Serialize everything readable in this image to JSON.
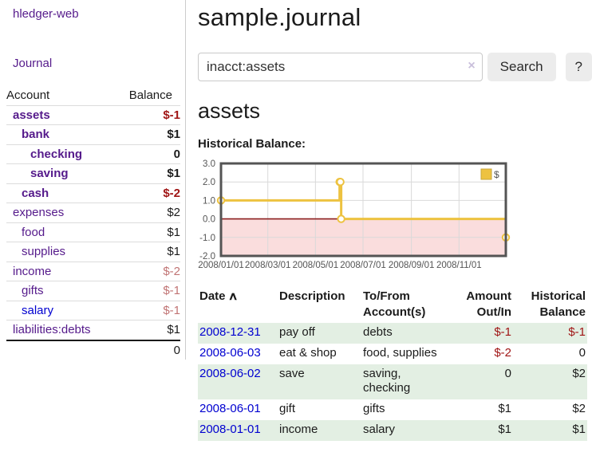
{
  "app": {
    "title": "hledger-web"
  },
  "sidebar": {
    "journal_link": "Journal",
    "accounts": {
      "header_account": "Account",
      "header_balance": "Balance",
      "rows": [
        {
          "account": "assets",
          "balance": "$-1",
          "depth": 1,
          "bold": true,
          "tone": "neg",
          "link": "purple"
        },
        {
          "account": "bank",
          "balance": "$1",
          "depth": 2,
          "bold": true,
          "tone": null,
          "link": "purple"
        },
        {
          "account": "checking",
          "balance": "0",
          "depth": 3,
          "bold": true,
          "tone": null,
          "link": "purple"
        },
        {
          "account": "saving",
          "balance": "$1",
          "depth": 3,
          "bold": true,
          "tone": null,
          "link": "purple"
        },
        {
          "account": "cash",
          "balance": "$-2",
          "depth": 2,
          "bold": true,
          "tone": "neg",
          "link": "purple"
        },
        {
          "account": "expenses",
          "balance": "$2",
          "depth": 1,
          "bold": false,
          "tone": null,
          "link": "purple"
        },
        {
          "account": "food",
          "balance": "$1",
          "depth": 2,
          "bold": false,
          "tone": null,
          "link": "purple"
        },
        {
          "account": "supplies",
          "balance": "$1",
          "depth": 2,
          "bold": false,
          "tone": null,
          "link": "purple"
        },
        {
          "account": "income",
          "balance": "$-2",
          "depth": 1,
          "bold": false,
          "tone": "neg-muted",
          "link": "purple"
        },
        {
          "account": "gifts",
          "balance": "$-1",
          "depth": 2,
          "bold": false,
          "tone": "neg-muted",
          "link": "purple"
        },
        {
          "account": "salary",
          "balance": "$-1",
          "depth": 2,
          "bold": false,
          "tone": "neg-muted",
          "link": "blue"
        },
        {
          "account": "liabilities:debts",
          "balance": "$1",
          "depth": 1,
          "bold": false,
          "tone": null,
          "link": "purple"
        }
      ],
      "total": "0"
    }
  },
  "main": {
    "title": "sample.journal",
    "search": {
      "value": "inacct:assets",
      "clear_label": "×",
      "button": "Search",
      "help": "?"
    },
    "account_heading": "assets",
    "chart_label": "Historical Balance:"
  },
  "register": {
    "headers": {
      "date": "Date",
      "sort_indicator": "∧",
      "description": "Description",
      "accounts": "To/From Account(s)",
      "amount": "Amount Out/In",
      "balance": "Historical Balance"
    },
    "rows": [
      {
        "date": "2008-12-31",
        "description": "pay off",
        "accounts": "debts",
        "amount": "$-1",
        "balance": "$-1",
        "amount_negative": true,
        "balance_negative": true,
        "shaded": true
      },
      {
        "date": "2008-06-03",
        "description": "eat & shop",
        "accounts": "food, supplies",
        "amount": "$-2",
        "balance": "0",
        "amount_negative": true,
        "balance_negative": false,
        "shaded": false
      },
      {
        "date": "2008-06-02",
        "description": "save",
        "accounts": "saving, checking",
        "amount": "0",
        "balance": "$2",
        "amount_negative": false,
        "balance_negative": false,
        "shaded": true
      },
      {
        "date": "2008-06-01",
        "description": "gift",
        "accounts": "gifts",
        "amount": "$1",
        "balance": "$2",
        "amount_negative": false,
        "balance_negative": false,
        "shaded": false
      },
      {
        "date": "2008-01-01",
        "description": "income",
        "accounts": "salary",
        "amount": "$1",
        "balance": "$1",
        "amount_negative": false,
        "balance_negative": false,
        "shaded": true
      }
    ]
  },
  "chart_data": {
    "type": "line",
    "title": "Historical Balance:",
    "x_type": "date",
    "series": [
      {
        "name": "$",
        "color": "#edc240",
        "steps": true,
        "points": [
          {
            "x": "2008-01-01",
            "y": 1
          },
          {
            "x": "2008-06-01",
            "y": 2
          },
          {
            "x": "2008-06-02",
            "y": 2
          },
          {
            "x": "2008-06-03",
            "y": 0
          },
          {
            "x": "2008-12-31",
            "y": -1
          }
        ]
      }
    ],
    "xlim": [
      "2008-01-01",
      "2008-12-31"
    ],
    "ylim": [
      -2,
      3
    ],
    "yticks": [
      3,
      2,
      1,
      0,
      -1,
      -2
    ],
    "ytick_labels": [
      "3.0",
      "2.0",
      "1.0",
      "0.0",
      "-1.0",
      "-2.0"
    ],
    "xticks": [
      "2008/01/01",
      "2008/03/01",
      "2008/05/01",
      "2008/07/01",
      "2008/09/01",
      "2008/11/01"
    ],
    "legend": {
      "position": "top-right",
      "entries": [
        {
          "label": "$",
          "color": "#edc240"
        }
      ]
    },
    "grid": true,
    "negative_fill": "#fadddd",
    "zero_line_color": "#8b1f1f",
    "axis_text_color": "#545454",
    "border_color": "#545454"
  },
  "colors": {
    "link_purple": "#551a8b",
    "link_blue": "#0000d0",
    "negative": "#a01515",
    "negative_muted": "#c17474",
    "row_shade_green": "#e3efe3",
    "chart_gold": "#edc240",
    "chart_negative_fill": "#fadddd",
    "chart_zero_line": "#8b1f1f",
    "button_bg": "#ececec",
    "divider": "#cccccc"
  }
}
